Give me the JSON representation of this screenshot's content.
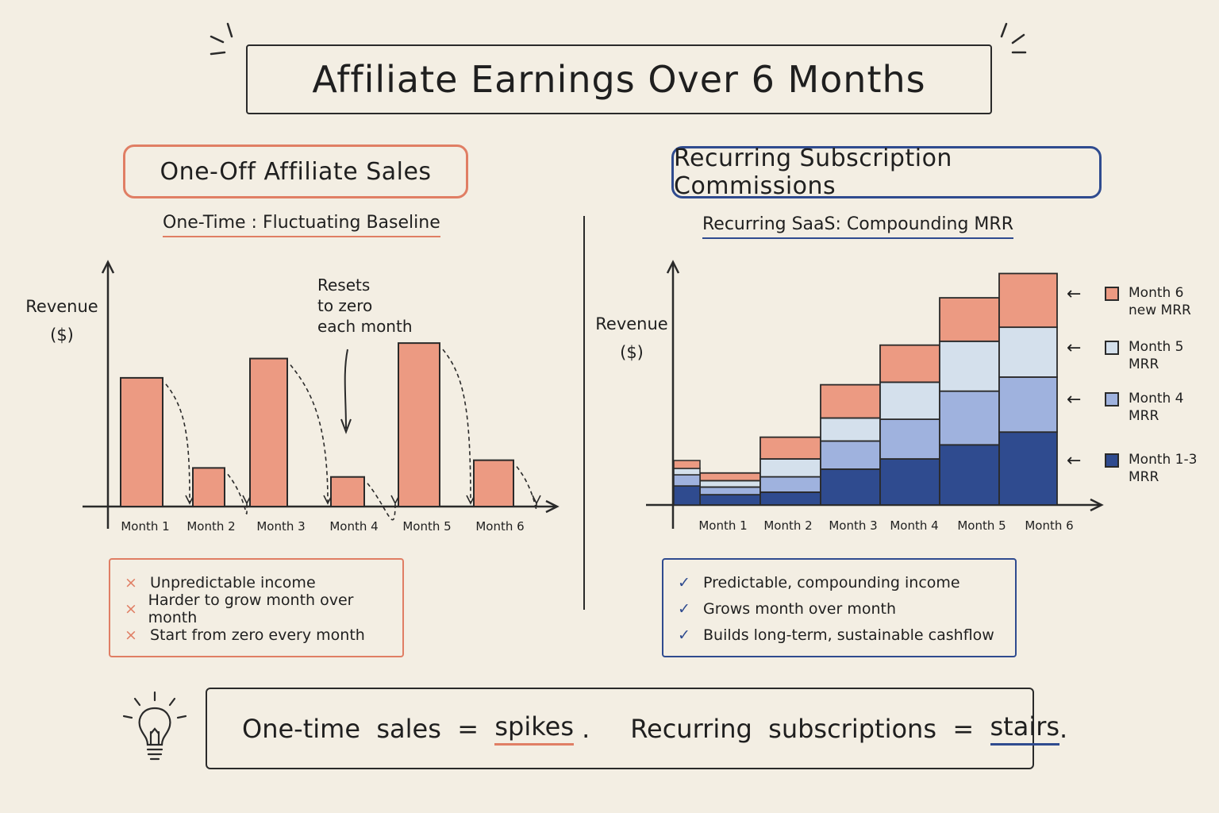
{
  "title": "Affiliate Earnings  Over 6 Months",
  "left_panel": {
    "title": "One-Off  Affiliate  Sales",
    "subtitle": "One-Time : Fluctuating  Baseline",
    "ylabel_line1": "Revenue",
    "ylabel_line2": "($)",
    "annotation": [
      "Resets",
      "to zero",
      "each month"
    ],
    "cons": [
      "Unpredictable  income",
      "Harder  to  grow  month  over  month",
      "Start  from  zero  every  month"
    ],
    "cons_mark": "×"
  },
  "right_panel": {
    "title": "Recurring  Subscription  Commissions",
    "subtitle": "Recurring  SaaS:  Compounding  MRR",
    "ylabel_line1": "Revenue",
    "ylabel_line2": "($)",
    "pros": [
      "Predictable,  compounding  income",
      "Grows  month  over  month",
      "Builds  long-term,  sustainable  cashflow"
    ],
    "pros_mark": "✓",
    "legend": [
      {
        "line1": "Month 6",
        "line2": "new MRR",
        "color": "#ec9a82"
      },
      {
        "line1": "Month 5",
        "line2": "MRR",
        "color": "#d4e0ec"
      },
      {
        "line1": "Month 4",
        "line2": "MRR",
        "color": "#9fb2de"
      },
      {
        "line1": "Month 1-3",
        "line2": "MRR",
        "color": "#2f4b8f"
      }
    ]
  },
  "summary": {
    "part1": "One-time  sales  =  ",
    "word1": "spikes",
    "part2": " .     Recurring  subscriptions  =  ",
    "word2": "stairs",
    "part3": "."
  },
  "chart_data": [
    {
      "type": "bar",
      "title": "One-Time : Fluctuating  Baseline",
      "ylabel": "Revenue ($)",
      "categories": [
        "Month 1",
        "Month 2",
        "Month 3",
        "Month 4",
        "Month 5",
        "Month 6"
      ],
      "values": [
        100,
        30,
        115,
        23,
        127,
        36
      ],
      "ylim": [
        0,
        190
      ],
      "color": "#ec9a82"
    },
    {
      "type": "bar",
      "stacked": true,
      "title": "Recurring  SaaS:  Compounding  MRR",
      "ylabel": "Revenue ($)",
      "categories": [
        "Month 1",
        "Month 2",
        "Month 3",
        "Month 4",
        "Month 5",
        "Month 6"
      ],
      "series": [
        {
          "name": "Month 1-3 MRR",
          "color": "#2f4b8f",
          "values": [
            8,
            10,
            28,
            36,
            47,
            57
          ]
        },
        {
          "name": "Month 4 MRR",
          "color": "#9fb2de",
          "values": [
            6,
            12,
            22,
            31,
            42,
            43
          ]
        },
        {
          "name": "Month 5 MRR",
          "color": "#d4e0ec",
          "values": [
            5,
            14,
            18,
            29,
            39,
            39
          ]
        },
        {
          "name": "Month 6 new MRR",
          "color": "#ec9a82",
          "values": [
            6,
            17,
            26,
            29,
            34,
            42
          ]
        }
      ],
      "ylim": [
        0,
        190
      ]
    }
  ]
}
